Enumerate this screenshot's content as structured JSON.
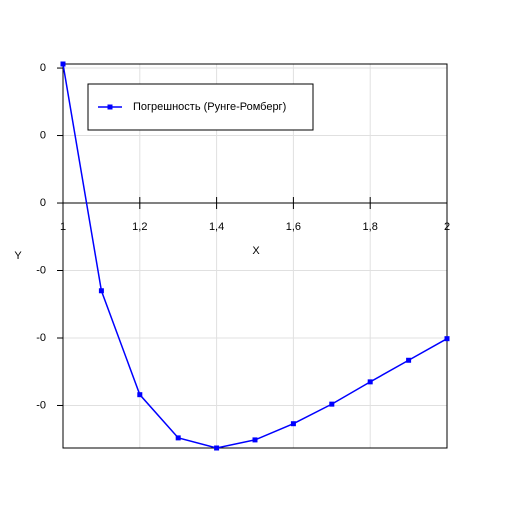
{
  "chart_data": {
    "type": "line",
    "x_label": "X",
    "y_label": "Y",
    "x": [
      1,
      1.1,
      1.2,
      1.3,
      1.4,
      1.5,
      1.6,
      1.7,
      1.8,
      1.9,
      2
    ],
    "series": [
      {
        "name": "Погрешность (Рунге-Ромберг)",
        "color": "#0000ff",
        "values": [
          0.000206,
          -0.00013,
          -0.000284,
          -0.000348,
          -0.000363,
          -0.000351,
          -0.000327,
          -0.000298,
          -0.000265,
          -0.000233,
          -0.000201
        ]
      }
    ],
    "xlim": [
      1,
      2
    ],
    "xticks": [
      1,
      {
        "value": 1.2,
        "label": "1,2"
      },
      {
        "value": 1.4,
        "label": "1,4"
      },
      {
        "value": 1.6,
        "label": "1,6"
      },
      {
        "value": 1.8,
        "label": "1,8"
      },
      2
    ],
    "ylim": [
      -0.000363,
      0.000206
    ],
    "yticks": [
      {
        "value": 0.0002,
        "label": "0"
      },
      {
        "value": 0.0001,
        "label": "0"
      },
      0,
      {
        "value": -0.0001,
        "label": "-0"
      },
      {
        "value": -0.0002,
        "label": "-0"
      },
      {
        "value": -0.0003,
        "label": "-0"
      }
    ],
    "grid": true,
    "legend": "upper left"
  }
}
